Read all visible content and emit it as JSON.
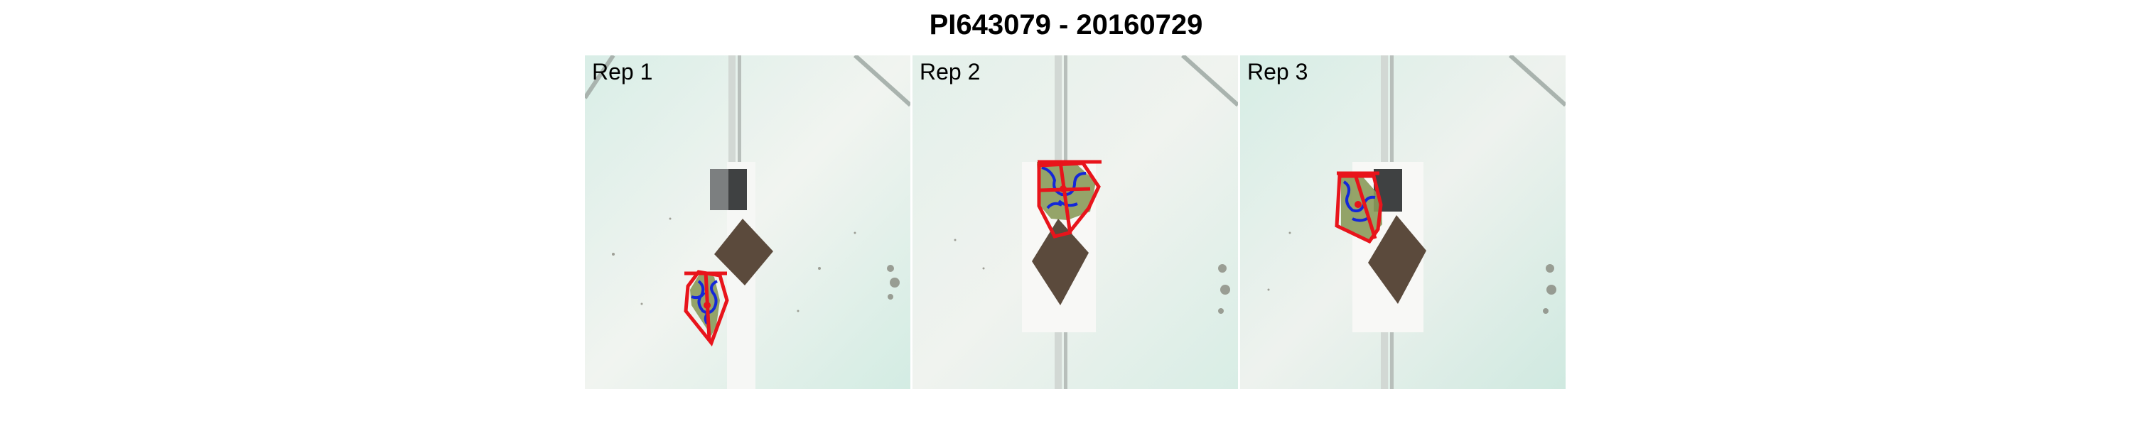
{
  "title": "PI643079 - 20160729",
  "panels": [
    {
      "label": "Rep 1"
    },
    {
      "label": "Rep 2"
    },
    {
      "label": "Rep 3"
    }
  ],
  "colors": {
    "background_tint": "#d6ede6",
    "hull_outline": "#e8141b",
    "plant_contour": "#1428d8",
    "plant_fill": "#8a9a5a",
    "soil": "#5b4a3c"
  }
}
